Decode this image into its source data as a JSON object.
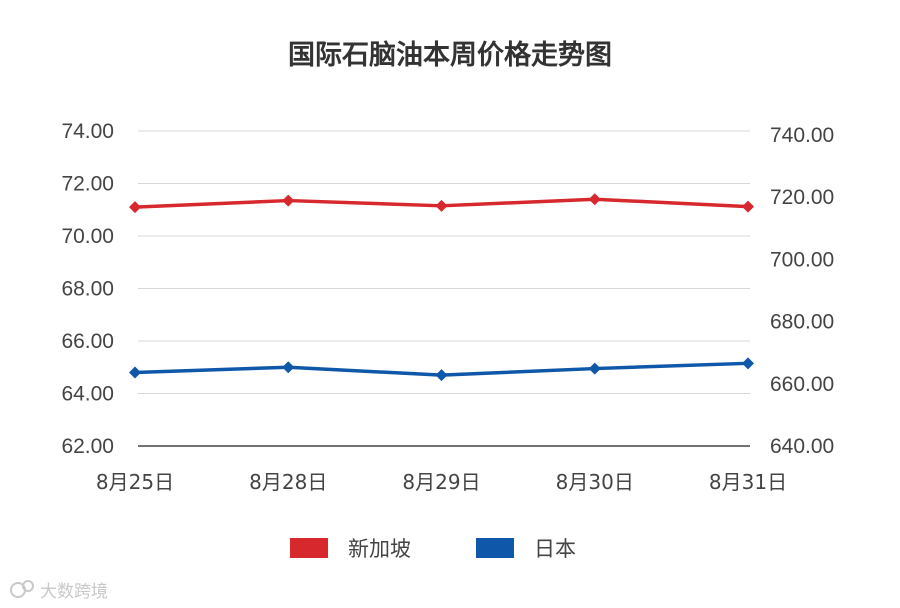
{
  "chart_data": {
    "type": "line",
    "title": "国际石脑油本周价格走势图",
    "categories": [
      "8月25日",
      "8月28日",
      "8月29日",
      "8月30日",
      "8月31日"
    ],
    "y_left": {
      "ylim": [
        62,
        74
      ],
      "ticks": [
        "74.00",
        "72.00",
        "70.00",
        "68.00",
        "66.00",
        "64.00",
        "62.00"
      ]
    },
    "y_right": {
      "ylim": [
        640,
        740
      ],
      "ticks": [
        "740.00",
        "720.00",
        "700.00",
        "680.00",
        "660.00",
        "640.00"
      ]
    },
    "grid": true,
    "legend": "bottom",
    "series": [
      {
        "name": "新加坡",
        "color": "#d7282e",
        "axis": "left",
        "values": [
          71.1,
          71.35,
          71.15,
          71.4,
          71.12
        ]
      },
      {
        "name": "日本",
        "color": "#0f57a8",
        "axis": "left",
        "values": [
          64.8,
          65.0,
          64.7,
          64.95,
          65.15
        ]
      }
    ]
  },
  "watermark": {
    "text": "大数跨境"
  }
}
